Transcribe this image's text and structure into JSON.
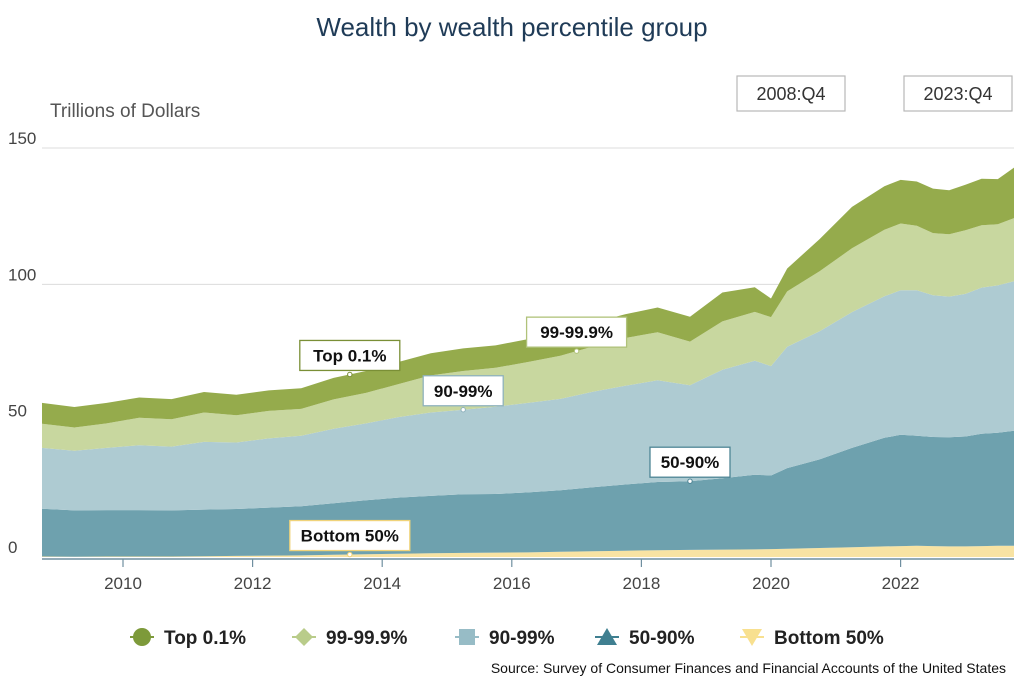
{
  "chart_data": {
    "type": "area",
    "stacked": true,
    "title": "Wealth by wealth percentile group",
    "ylabel": "Trillions of Dollars",
    "xlabel": "",
    "xlim": [
      2008.75,
      2023.75
    ],
    "ylim": [
      0,
      150
    ],
    "x_ticks": [
      2010,
      2012,
      2014,
      2016,
      2018,
      2020,
      2022
    ],
    "y_ticks": [
      0,
      50,
      100,
      150
    ],
    "grid": "horizontal",
    "legend_position": "bottom",
    "range_buttons": [
      "2008:Q4",
      "2023:Q4"
    ],
    "source": "Source: Survey of Consumer Finances and Financial Accounts of the United States",
    "x": [
      2008.75,
      2009.25,
      2009.75,
      2010.25,
      2010.75,
      2011.25,
      2011.75,
      2012.25,
      2012.75,
      2013.25,
      2013.75,
      2014.25,
      2014.75,
      2015.25,
      2015.75,
      2016.25,
      2016.75,
      2017.25,
      2017.75,
      2018.25,
      2018.75,
      2019.25,
      2019.75,
      2020.0,
      2020.25,
      2020.75,
      2021.25,
      2021.75,
      2022.0,
      2022.25,
      2022.5,
      2022.75,
      2023.0,
      2023.25,
      2023.5,
      2023.75
    ],
    "series": [
      {
        "name": "Bottom 50%",
        "color": "#f8e3a3",
        "marker": "triangle-down",
        "values": [
          0.2,
          0.1,
          0.2,
          0.2,
          0.2,
          0.3,
          0.4,
          0.5,
          0.6,
          0.8,
          1.0,
          1.2,
          1.4,
          1.5,
          1.6,
          1.7,
          1.9,
          2.1,
          2.3,
          2.5,
          2.6,
          2.7,
          2.8,
          2.9,
          3.0,
          3.3,
          3.6,
          3.9,
          4.0,
          4.1,
          4.0,
          3.9,
          3.9,
          4.0,
          4.1,
          4.1
        ]
      },
      {
        "name": "50-90%",
        "color": "#6ea1ae",
        "marker": "triangle-up",
        "values": [
          17.5,
          17.0,
          17.0,
          17.0,
          16.9,
          17.1,
          17.2,
          17.6,
          18.0,
          18.9,
          19.8,
          20.6,
          21.0,
          21.5,
          21.5,
          22.0,
          22.6,
          23.5,
          24.3,
          25.0,
          25.2,
          26.2,
          27.4,
          27.0,
          29.6,
          32.5,
          36.4,
          39.8,
          40.8,
          40.4,
          40.0,
          40.0,
          40.3,
          41.2,
          41.5,
          42.2
        ]
      },
      {
        "name": "90-99%",
        "color": "#aecbd2",
        "marker": "square",
        "values": [
          22.3,
          21.9,
          22.8,
          23.8,
          23.4,
          24.8,
          24.4,
          25.4,
          25.9,
          27.3,
          28.2,
          29.5,
          30.6,
          31.0,
          32.0,
          32.8,
          33.5,
          35.0,
          36.2,
          37.3,
          35.2,
          39.8,
          41.8,
          40.1,
          44.5,
          47.0,
          49.8,
          51.9,
          53.0,
          53.3,
          52.0,
          51.6,
          52.3,
          53.6,
          54.0,
          54.8
        ]
      },
      {
        "name": "99-99.9%",
        "color": "#c8d79f",
        "marker": "diamond",
        "values": [
          8.9,
          8.5,
          9.0,
          10.1,
          10.0,
          10.8,
          10.0,
          10.1,
          9.8,
          10.8,
          11.2,
          12.1,
          13.6,
          14.2,
          14.3,
          15.0,
          15.8,
          16.6,
          17.5,
          17.6,
          16.0,
          17.7,
          17.9,
          18.0,
          20.3,
          22.0,
          23.4,
          24.4,
          24.5,
          23.7,
          22.8,
          22.9,
          23.3,
          22.9,
          22.4,
          23.2
        ]
      },
      {
        "name": "Top 0.1%",
        "color": "#95ab4c",
        "marker": "circle",
        "values": [
          7.6,
          7.5,
          7.5,
          7.4,
          7.4,
          7.5,
          7.5,
          7.5,
          7.6,
          7.9,
          8.0,
          8.1,
          8.1,
          8.3,
          8.2,
          8.4,
          8.6,
          8.7,
          8.7,
          9.1,
          9.1,
          10.6,
          9.0,
          6.8,
          8.4,
          11.8,
          15.2,
          16.0,
          16.0,
          16.2,
          16.3,
          16.1,
          16.7,
          17.0,
          16.6,
          18.5
        ]
      }
    ],
    "callouts": [
      {
        "label": "Top 0.1%",
        "series": "Top 0.1%",
        "x": 2013.5
      },
      {
        "label": "99-99.9%",
        "series": "99-99.9%",
        "x": 2017.0
      },
      {
        "label": "90-99%",
        "series": "90-99%",
        "x": 2015.25
      },
      {
        "label": "50-90%",
        "series": "50-90%",
        "x": 2018.75
      },
      {
        "label": "Bottom 50%",
        "series": "Bottom 50%",
        "x": 2013.5
      }
    ],
    "legend": [
      {
        "label": "Top 0.1%",
        "color": "#7d9a3a",
        "marker": "circle"
      },
      {
        "label": "99-99.9%",
        "color": "#b9cc8a",
        "marker": "diamond"
      },
      {
        "label": "90-99%",
        "color": "#97bcc6",
        "marker": "square"
      },
      {
        "label": "50-90%",
        "color": "#3f7f90",
        "marker": "triangle-up"
      },
      {
        "label": "Bottom 50%",
        "color": "#f8e08f",
        "marker": "triangle-down"
      }
    ]
  }
}
